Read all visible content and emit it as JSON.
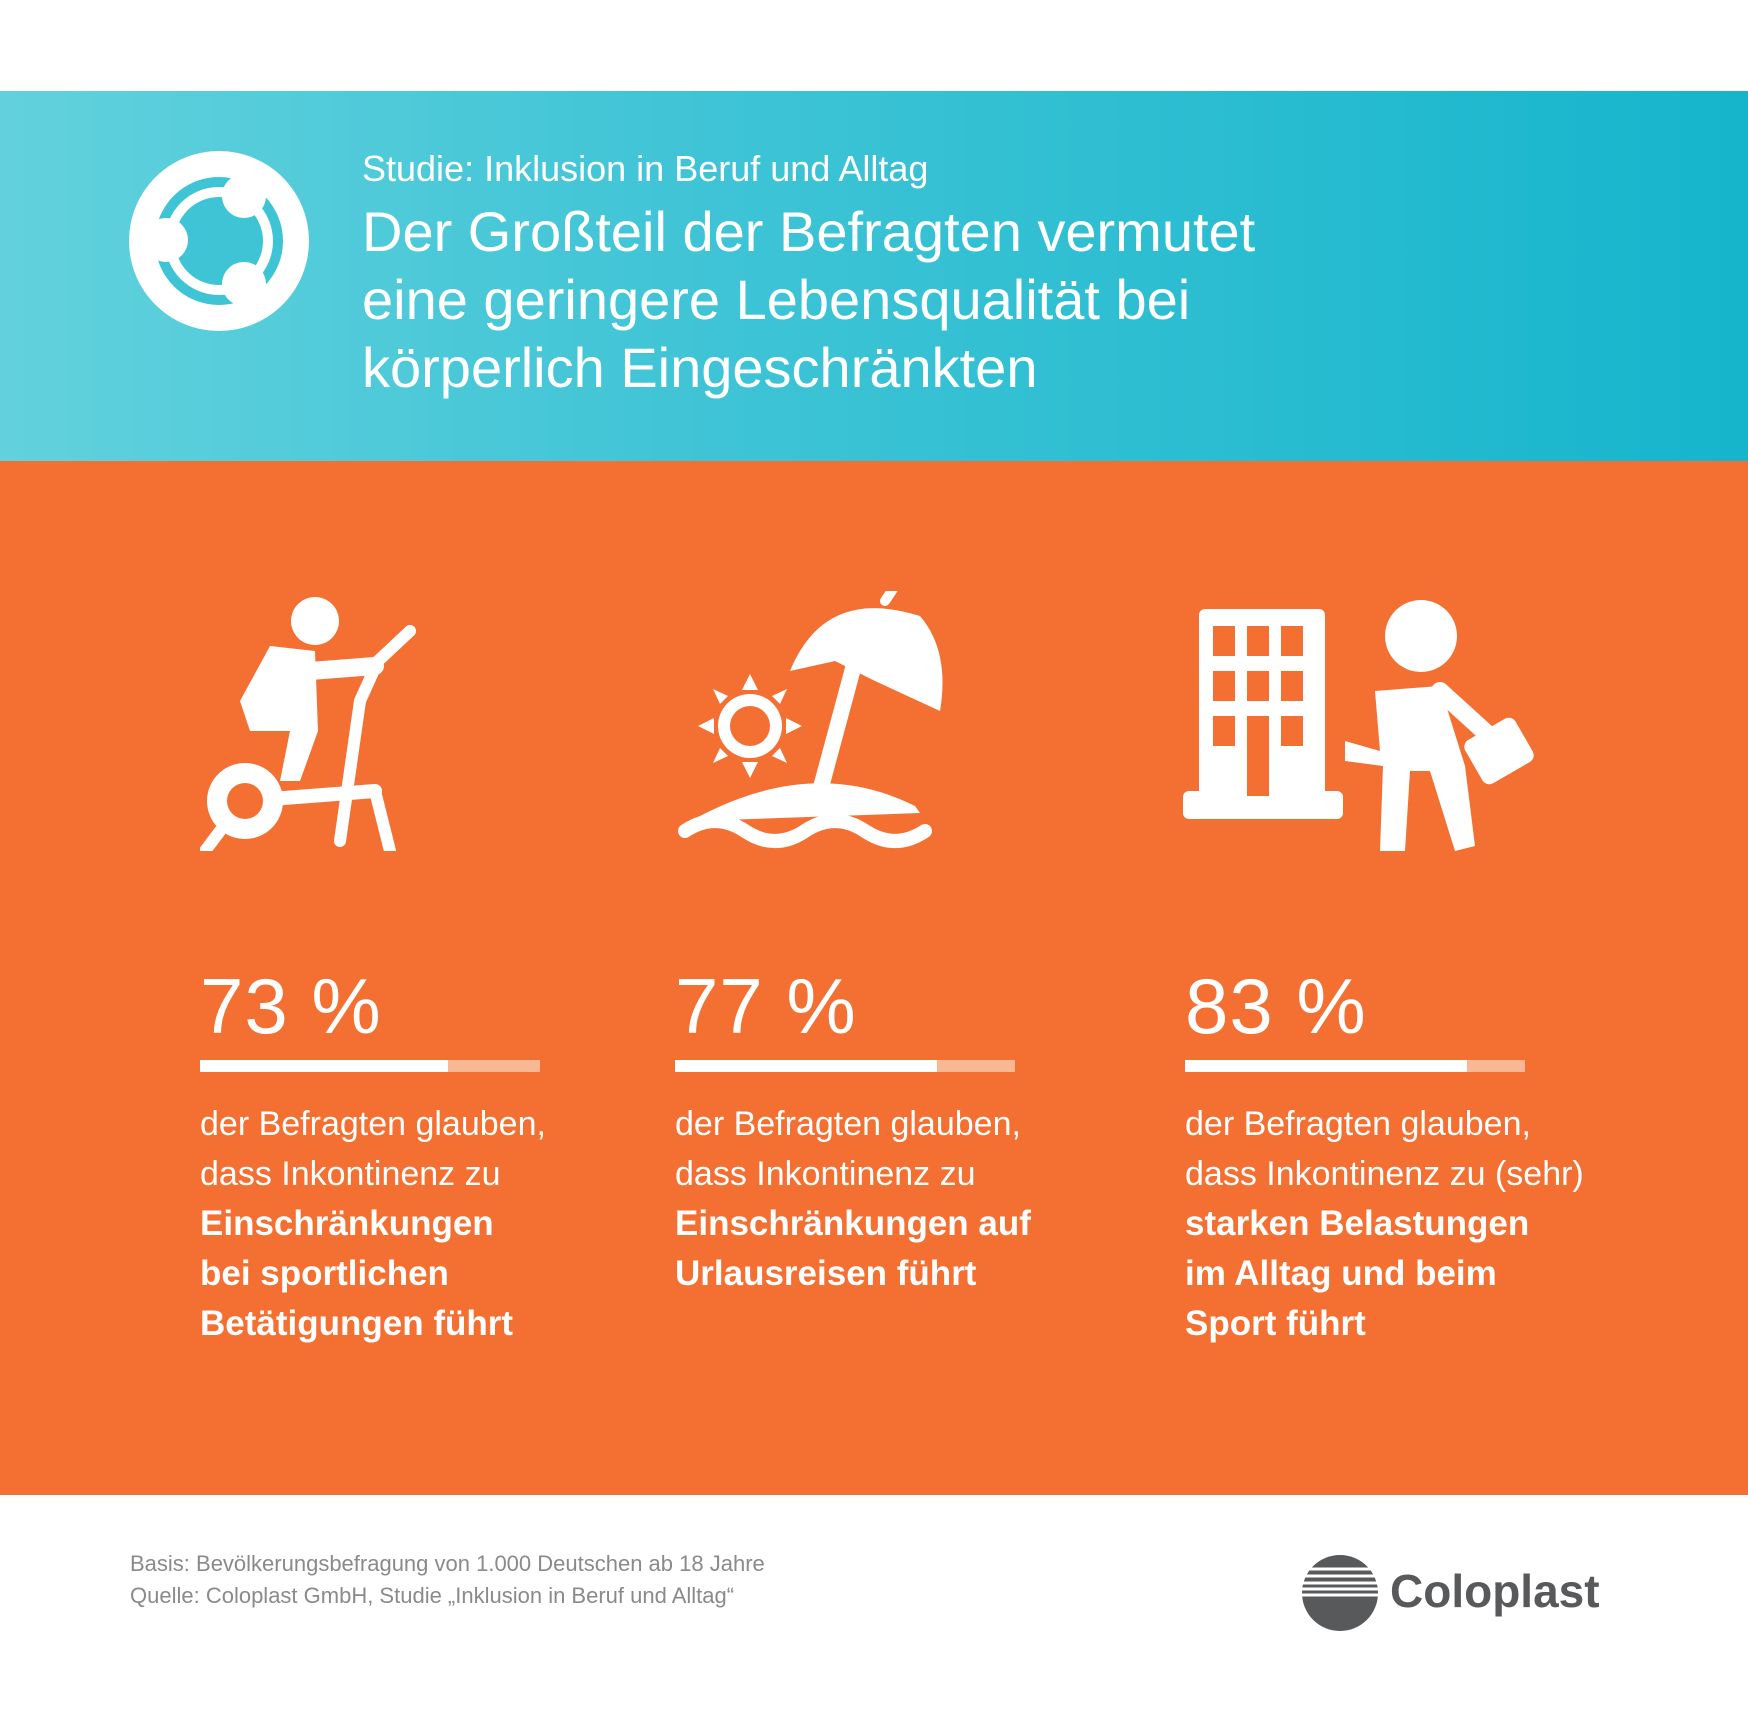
{
  "header": {
    "kicker": "Studie: Inklusion in Beruf und Alltag",
    "title_lines": [
      "Der Großteil der Befragten vermutet",
      "eine geringere Lebensqualität bei",
      "körperlich Eingeschränkten"
    ],
    "logo_icon": "people-circle-icon"
  },
  "colors": {
    "banner_start": "#62d1dd",
    "banner_end": "#16b5cc",
    "panel": "#f37032",
    "bar_fill": "#ffffff",
    "bar_track": "#f9b894"
  },
  "chart_data": {
    "type": "bar",
    "categories": [
      "Sport",
      "Urlaub",
      "Alltag"
    ],
    "values": [
      73,
      77,
      83
    ],
    "value_labels": [
      "73 %",
      "77 %",
      "83 %"
    ],
    "ylim": [
      0,
      100
    ]
  },
  "stats": [
    {
      "icon": "exercise-bike-icon",
      "value_label": "73 %",
      "text": [
        "der Befragten glauben,",
        "dass Inkontinenz zu"
      ],
      "bold": [
        "Einschränkungen",
        "bei sportlichen",
        "Betätigungen führt"
      ]
    },
    {
      "icon": "beach-umbrella-icon",
      "value_label": "77 %",
      "text": [
        "der Befragten glauben,",
        "dass Inkontinenz zu"
      ],
      "bold": [
        "Einschränkungen auf",
        "Urlausreisen führt"
      ]
    },
    {
      "icon": "office-worker-icon",
      "value_label": "83 %",
      "text": [
        "der Befragten glauben,",
        "dass Inkontinenz zu (sehr)"
      ],
      "bold": [
        "starken Belastungen",
        "im Alltag und beim",
        "Sport führt"
      ]
    }
  ],
  "footer": {
    "basis": "Basis: Bevölkerungsbefragung von 1.000 Deutschen ab 18 Jahre",
    "source": "Quelle: Coloplast GmbH, Studie „Inklusion in Beruf und Alltag“",
    "brand": "Coloplast",
    "brand_icon": "coloplast-logo-icon"
  }
}
